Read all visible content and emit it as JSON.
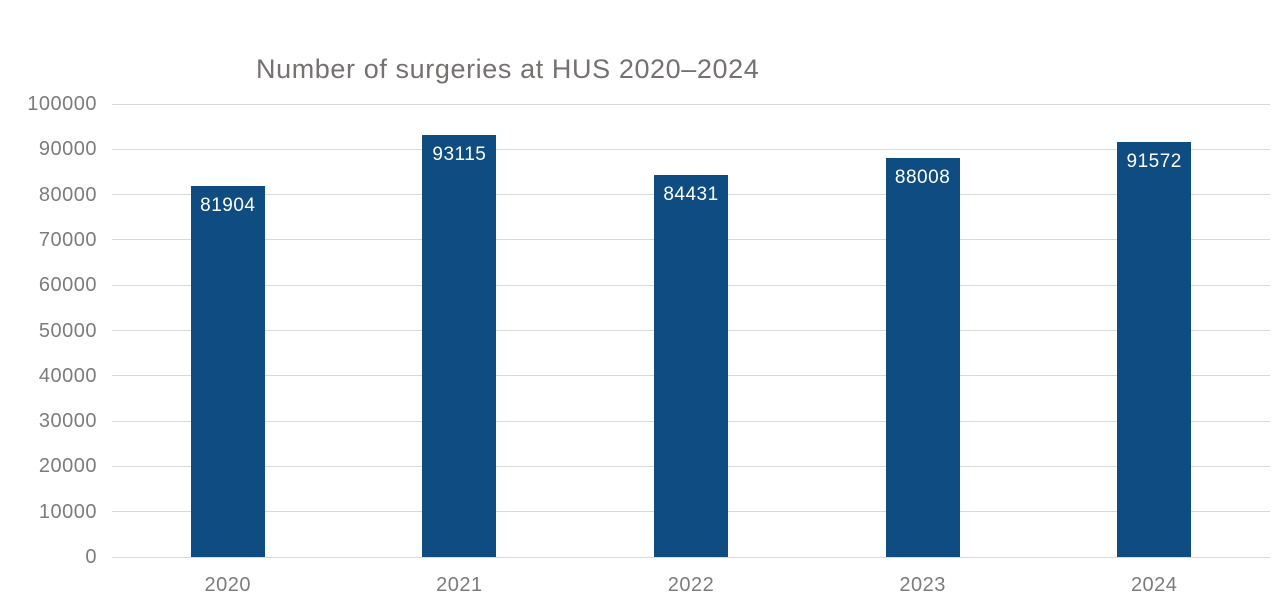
{
  "chart_data": {
    "type": "bar",
    "title": "Number of surgeries at HUS 2020–2024",
    "categories": [
      "2020",
      "2021",
      "2022",
      "2023",
      "2024"
    ],
    "values": [
      81904,
      93115,
      84431,
      88008,
      91572
    ],
    "xlabel": "",
    "ylabel": "",
    "ylim": [
      0,
      100000
    ],
    "ytick_step": 10000,
    "grid": "horizontal",
    "legend_position": "none",
    "data_labels_position": "inside-end",
    "colors": {
      "bar": "#0e4c82",
      "grid": "#d9d9d9",
      "axis_text": "#7c7c7c",
      "title_text": "#767171",
      "data_label_text": "#ffffff",
      "background": "#ffffff"
    }
  }
}
